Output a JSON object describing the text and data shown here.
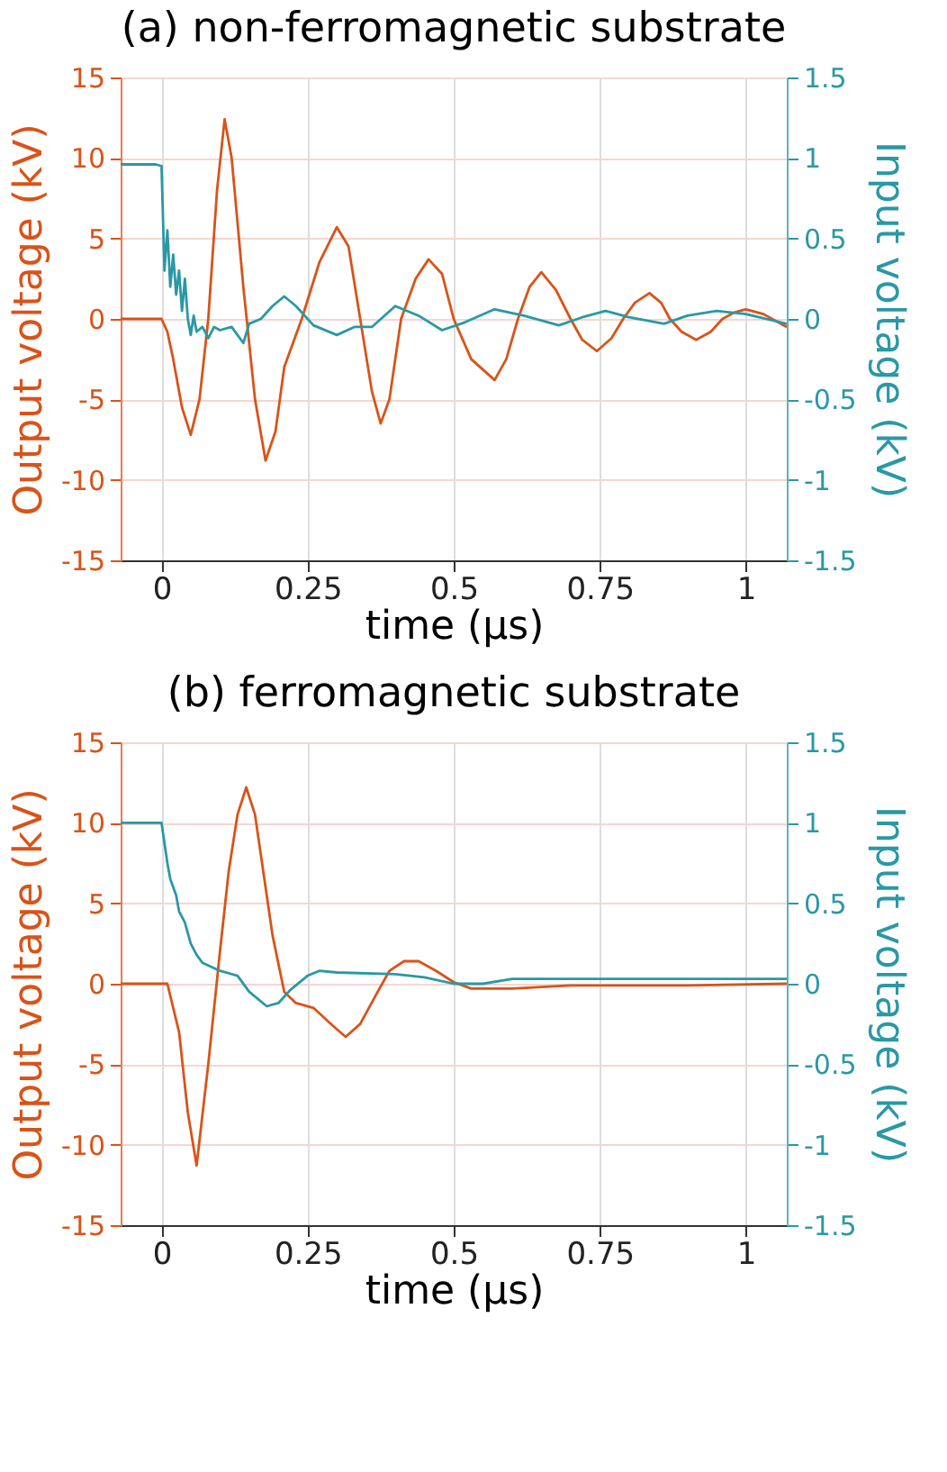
{
  "chart_data": [
    {
      "type": "line",
      "title": "(a) non-ferromagnetic substrate",
      "xlabel": "time (µs)",
      "ylabel": "Output voltage (kV)",
      "y2label": "Input voltage (kV)",
      "xlim": [
        -0.07,
        1.07
      ],
      "xticks": [
        0,
        0.25,
        0.5,
        0.75,
        1
      ],
      "ylim": [
        -15,
        15
      ],
      "yticks": [
        -15,
        -10,
        -5,
        0,
        5,
        10,
        15
      ],
      "y2lim": [
        -1.5,
        1.5
      ],
      "y2ticks": [
        -1.5,
        -1,
        -0.5,
        0,
        0.5,
        1,
        1.5
      ],
      "grid": true,
      "line_style": "solid",
      "marker": "none",
      "series": [
        {
          "color": "#d95319",
          "x": [
            -0.07,
            0,
            0.01,
            0.02,
            0.035,
            0.05,
            0.065,
            0.08,
            0.095,
            0.108,
            0.12,
            0.14,
            0.16,
            0.178,
            0.195,
            0.21,
            0.24,
            0.27,
            0.3,
            0.32,
            0.34,
            0.36,
            0.375,
            0.39,
            0.41,
            0.435,
            0.457,
            0.48,
            0.5,
            0.53,
            0.57,
            0.59,
            0.61,
            0.63,
            0.65,
            0.675,
            0.7,
            0.72,
            0.745,
            0.77,
            0.79,
            0.81,
            0.835,
            0.855,
            0.87,
            0.89,
            0.915,
            0.94,
            0.96,
            0.98,
            1.0,
            1.03,
            1.07
          ],
          "values": [
            0,
            0,
            -0.8,
            -2.5,
            -5.5,
            -7.2,
            -5,
            0,
            8,
            12.4,
            10,
            2,
            -5,
            -8.8,
            -7,
            -3,
            0,
            3.5,
            5.7,
            4.5,
            0,
            -4.5,
            -6.5,
            -5,
            0,
            2.5,
            3.7,
            2.8,
            0,
            -2.5,
            -3.8,
            -2.5,
            0,
            2,
            2.9,
            1.8,
            0,
            -1.3,
            -2,
            -1.2,
            0,
            1,
            1.6,
            1,
            0,
            -0.8,
            -1.3,
            -0.8,
            0,
            0.4,
            0.6,
            0.3,
            -0.5
          ]
        },
        {
          "color": "#2a98a5",
          "axis": "y2",
          "x": [
            -0.07,
            -0.01,
            0,
            0.005,
            0.01,
            0.015,
            0.02,
            0.025,
            0.03,
            0.035,
            0.04,
            0.045,
            0.05,
            0.055,
            0.06,
            0.07,
            0.08,
            0.09,
            0.1,
            0.12,
            0.14,
            0.15,
            0.17,
            0.19,
            0.21,
            0.23,
            0.26,
            0.3,
            0.33,
            0.36,
            0.4,
            0.44,
            0.48,
            0.52,
            0.57,
            0.62,
            0.68,
            0.72,
            0.76,
            0.8,
            0.86,
            0.9,
            0.95,
            1.0,
            1.07
          ],
          "values": [
            0.96,
            0.96,
            0.95,
            0.3,
            0.55,
            0.2,
            0.4,
            0.15,
            0.3,
            0.05,
            0.25,
            0,
            -0.1,
            0.02,
            -0.08,
            -0.05,
            -0.12,
            -0.05,
            -0.07,
            -0.05,
            -0.15,
            -0.03,
            0,
            0.08,
            0.14,
            0.08,
            -0.04,
            -0.1,
            -0.05,
            -0.05,
            0.08,
            0.02,
            -0.07,
            -0.02,
            0.06,
            0.02,
            -0.04,
            0.01,
            0.05,
            0.01,
            -0.03,
            0.02,
            0.05,
            0.03,
            -0.03
          ]
        }
      ]
    },
    {
      "type": "line",
      "title": "(b) ferromagnetic substrate",
      "xlabel": "time (µs)",
      "ylabel": "Output voltage (kV)",
      "y2label": "Input voltage (kV)",
      "xlim": [
        -0.07,
        1.07
      ],
      "xticks": [
        0,
        0.25,
        0.5,
        0.75,
        1
      ],
      "ylim": [
        -15,
        15
      ],
      "yticks": [
        -15,
        -10,
        -5,
        0,
        5,
        10,
        15
      ],
      "y2lim": [
        -1.5,
        1.5
      ],
      "y2ticks": [
        -1.5,
        -1,
        -0.5,
        0,
        0.5,
        1,
        1.5
      ],
      "grid": true,
      "line_style": "solid",
      "marker": "none",
      "series": [
        {
          "color": "#d95319",
          "x": [
            -0.07,
            0.01,
            0.03,
            0.045,
            0.06,
            0.08,
            0.1,
            0.115,
            0.13,
            0.145,
            0.16,
            0.17,
            0.19,
            0.21,
            0.23,
            0.26,
            0.29,
            0.315,
            0.34,
            0.37,
            0.39,
            0.415,
            0.44,
            0.47,
            0.5,
            0.53,
            0.6,
            0.7,
            0.8,
            0.9,
            1.07
          ],
          "values": [
            0,
            0,
            -3,
            -8,
            -11.3,
            -5,
            2,
            7,
            10.5,
            12.2,
            10.5,
            8,
            3,
            -0.5,
            -1.2,
            -1.5,
            -2.5,
            -3.3,
            -2.5,
            -0.5,
            0.8,
            1.4,
            1.4,
            0.8,
            0.1,
            -0.3,
            -0.3,
            -0.1,
            -0.1,
            -0.1,
            0
          ]
        },
        {
          "color": "#2a98a5",
          "axis": "y2",
          "x": [
            -0.07,
            0,
            0.01,
            0.015,
            0.025,
            0.03,
            0.04,
            0.05,
            0.06,
            0.07,
            0.1,
            0.13,
            0.15,
            0.18,
            0.2,
            0.22,
            0.25,
            0.27,
            0.3,
            0.4,
            0.45,
            0.5,
            0.55,
            0.6,
            0.7,
            0.8,
            0.9,
            1.07
          ],
          "values": [
            1,
            1,
            0.75,
            0.65,
            0.55,
            0.45,
            0.38,
            0.25,
            0.18,
            0.13,
            0.08,
            0.05,
            -0.05,
            -0.14,
            -0.12,
            -0.04,
            0.05,
            0.08,
            0.07,
            0.06,
            0.04,
            0,
            0,
            0.03,
            0.03,
            0.03,
            0.03,
            0.03
          ]
        }
      ]
    }
  ]
}
